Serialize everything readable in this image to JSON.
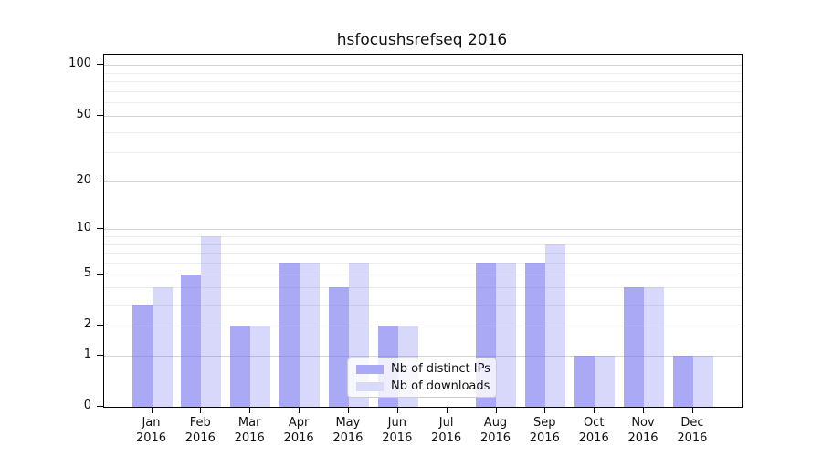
{
  "title": "hsfocushsrefseq 2016",
  "legend": {
    "items": [
      {
        "label": "Nb of distinct IPs",
        "swatch_color": "#a9a9f5"
      },
      {
        "label": "Nb of downloads",
        "swatch_color": "#d9d9fa"
      }
    ]
  },
  "axis": {
    "y_tick_labels": [
      "100",
      "50",
      "20",
      "10",
      "5",
      "2",
      "1",
      "0"
    ],
    "x_year_label": "2016"
  },
  "chart_data": {
    "type": "bar",
    "title": "hsfocushsrefseq 2016",
    "categories": [
      "Jan",
      "Feb",
      "Mar",
      "Apr",
      "May",
      "Jun",
      "Jul",
      "Aug",
      "Sep",
      "Oct",
      "Nov",
      "Dec"
    ],
    "categories_second_line": "2016",
    "series": [
      {
        "name": "Nb of distinct IPs",
        "key": "distinct-ips",
        "color_rgba": "rgba(112,112,238,0.60)",
        "legend_color": "#a9a9f5",
        "values": [
          3,
          5,
          2,
          6,
          4,
          2,
          0,
          6,
          6,
          1,
          4,
          1
        ]
      },
      {
        "name": "Nb of downloads",
        "key": "downloads",
        "color_rgba": "rgba(112,112,238,0.27)",
        "legend_color": "#d9d9fa",
        "values": [
          4,
          9,
          2,
          6,
          6,
          2,
          0,
          6,
          8,
          1,
          4,
          1
        ]
      }
    ],
    "xlabel": "",
    "ylabel": "",
    "yscale": "log1p",
    "ylim": [
      0,
      114
    ],
    "yticks_major": [
      0,
      1,
      2,
      5,
      10,
      20,
      50,
      100
    ],
    "yticks_minor": [
      3,
      4,
      6,
      7,
      8,
      9,
      30,
      40,
      60,
      70,
      80,
      90
    ],
    "grid": true,
    "legend_position": "lower center"
  }
}
